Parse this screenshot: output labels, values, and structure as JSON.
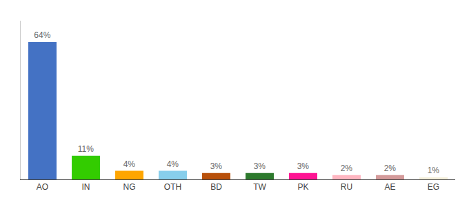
{
  "chart_data": {
    "type": "bar",
    "categories": [
      "AO",
      "IN",
      "NG",
      "OTH",
      "BD",
      "TW",
      "PK",
      "RU",
      "AE",
      "EG"
    ],
    "values": [
      64,
      11,
      4,
      4,
      3,
      3,
      3,
      2,
      2,
      1
    ],
    "value_labels": [
      "64%",
      "11%",
      "4%",
      "4%",
      "3%",
      "3%",
      "3%",
      "2%",
      "2%",
      "1%"
    ],
    "colors": [
      "#4472C4",
      "#33CC00",
      "#FFA500",
      "#87CEEB",
      "#B8500A",
      "#2D7A2D",
      "#FF1493",
      "#FFB6C1",
      "#D49A9A",
      "#F5F0DC"
    ],
    "ylim": [
      0,
      74
    ],
    "grid": false,
    "data_labels": true,
    "tick_labels": "x"
  }
}
